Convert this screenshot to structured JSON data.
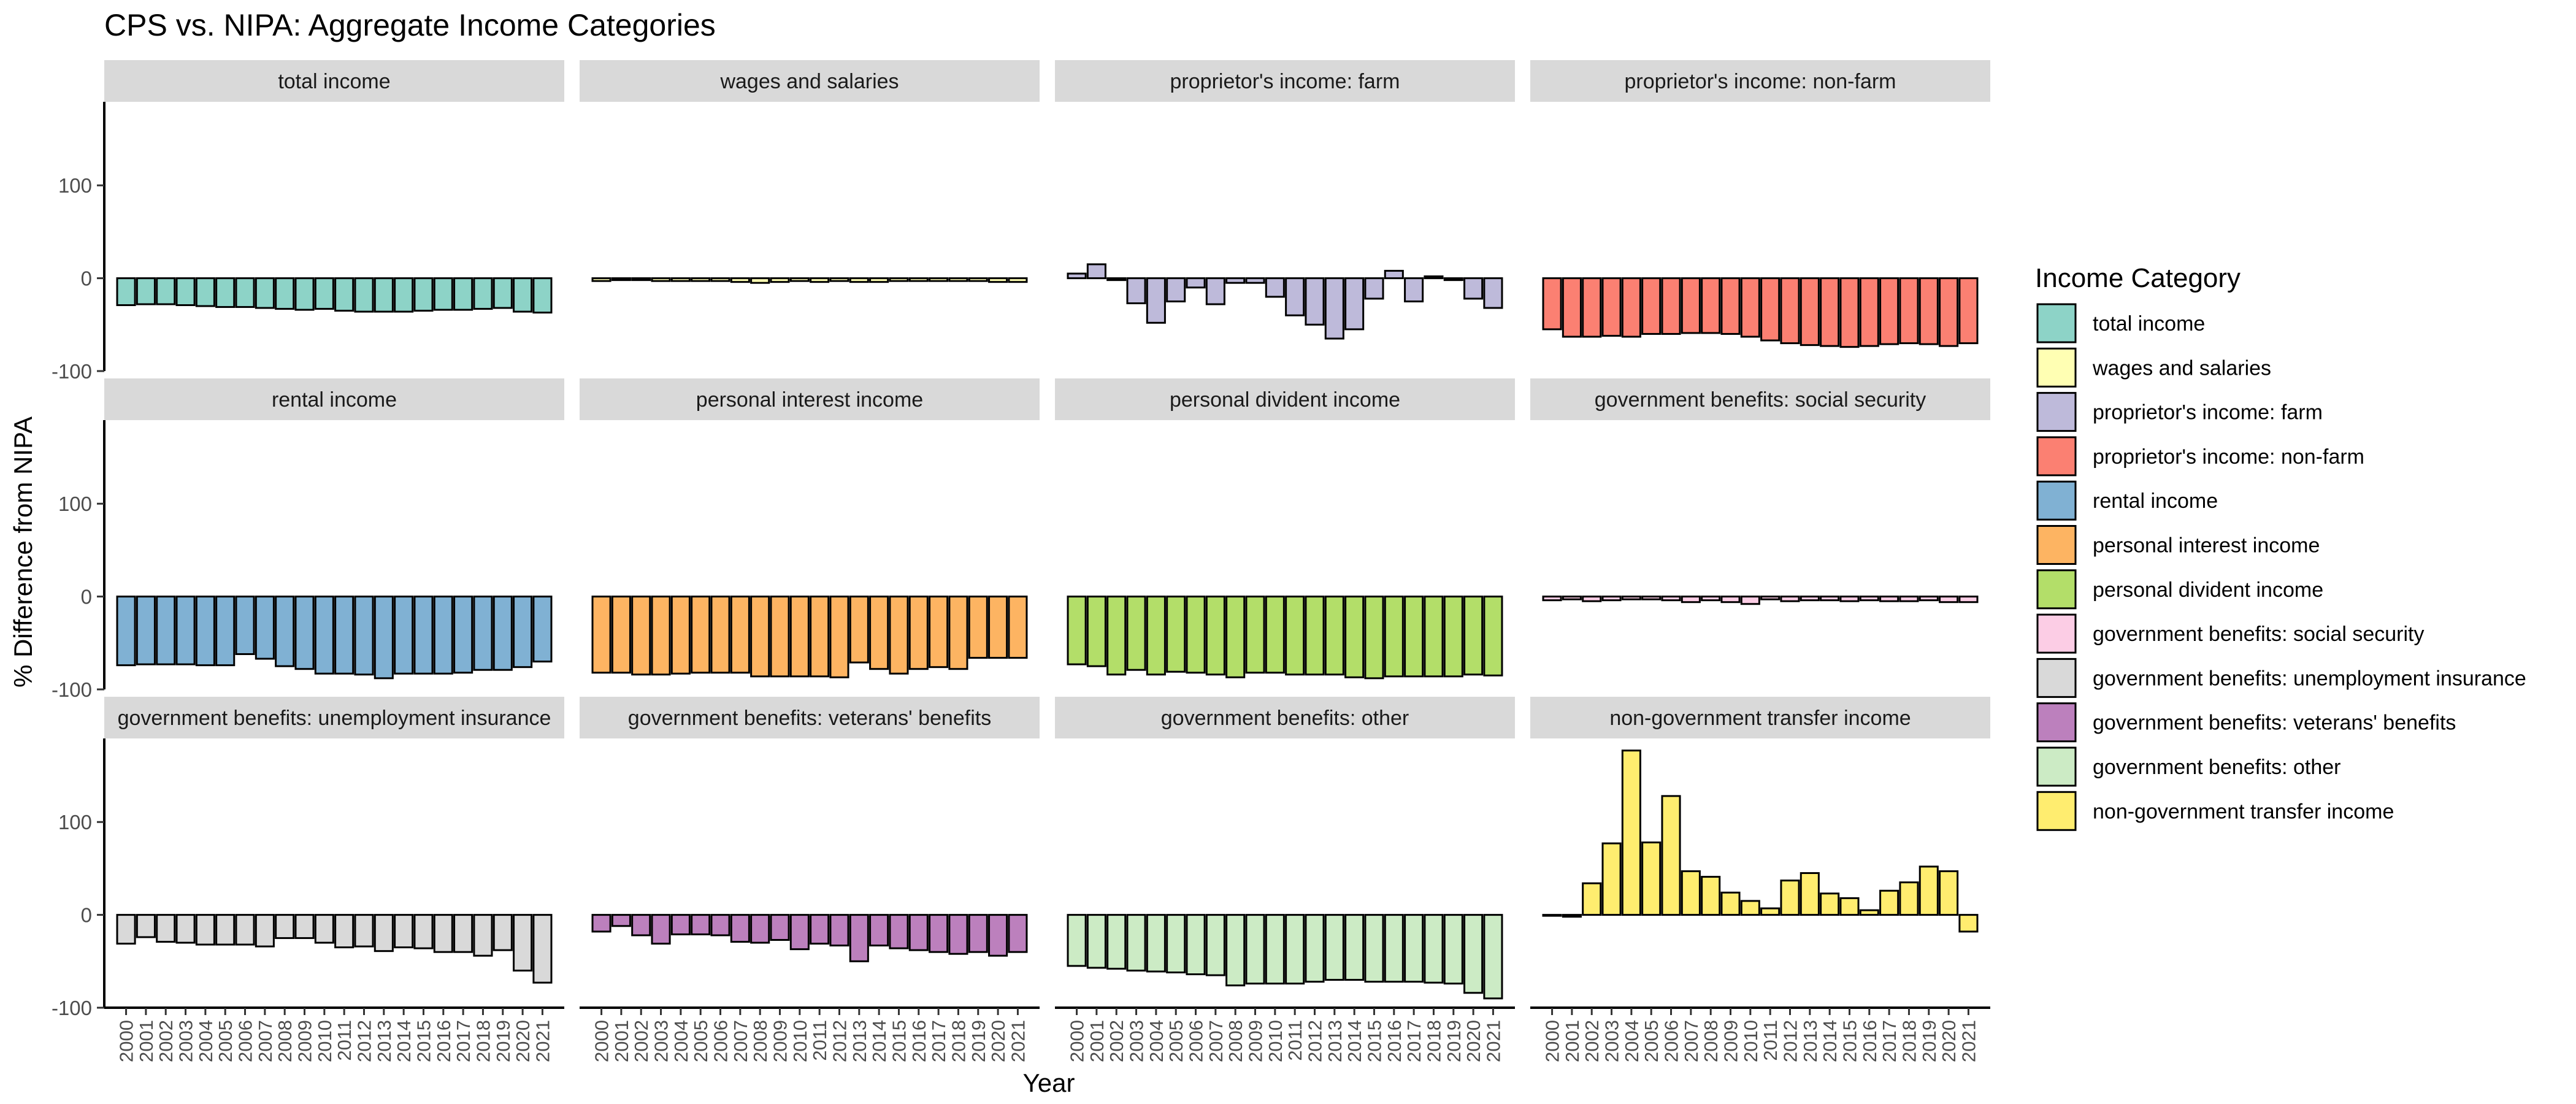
{
  "chart_data": {
    "type": "bar",
    "title": "CPS vs. NIPA: Aggregate Income Categories",
    "xlabel": "Year",
    "ylabel": "% Difference from NIPA",
    "ylim": [
      -100,
      190
    ],
    "y_ticks": [
      -100,
      0,
      100
    ],
    "grid": false,
    "legend_placement": "right",
    "legend_title": "Income Category",
    "facet_layout": "3x4",
    "categories": [
      "2000",
      "2001",
      "2002",
      "2003",
      "2004",
      "2005",
      "2006",
      "2007",
      "2008",
      "2009",
      "2010",
      "2011",
      "2012",
      "2013",
      "2014",
      "2015",
      "2016",
      "2017",
      "2018",
      "2019",
      "2020",
      "2021"
    ],
    "series": [
      {
        "name": "total income",
        "color": "#8DD3C7",
        "values": [
          -29,
          -28,
          -28,
          -29,
          -30,
          -31,
          -31,
          -32,
          -33,
          -34,
          -33,
          -35,
          -36,
          -36,
          -36,
          -35,
          -34,
          -34,
          -33,
          -32,
          -36,
          -37
        ]
      },
      {
        "name": "wages and salaries",
        "color": "#FFFFB3",
        "values": [
          -3,
          -2,
          -2,
          -3,
          -3,
          -3,
          -3,
          -4,
          -5,
          -4,
          -3,
          -4,
          -3,
          -4,
          -4,
          -3,
          -3,
          -3,
          -3,
          -3,
          -4,
          -4
        ]
      },
      {
        "name": "proprietor's income: farm",
        "color": "#BEBADA",
        "values": [
          5,
          15,
          -2,
          -27,
          -48,
          -25,
          -10,
          -28,
          -5,
          -5,
          -20,
          -40,
          -50,
          -65,
          -55,
          -22,
          8,
          -25,
          2,
          -2,
          -22,
          -32
        ]
      },
      {
        "name": "proprietor's income: non-farm",
        "color": "#FB8072",
        "values": [
          -55,
          -63,
          -63,
          -62,
          -63,
          -60,
          -60,
          -59,
          -59,
          -60,
          -63,
          -67,
          -70,
          -72,
          -73,
          -74,
          -73,
          -71,
          -70,
          -71,
          -73,
          -70
        ]
      },
      {
        "name": "rental income",
        "color": "#80B1D3",
        "values": [
          -74,
          -73,
          -73,
          -73,
          -74,
          -74,
          -62,
          -67,
          -75,
          -78,
          -83,
          -83,
          -84,
          -88,
          -83,
          -83,
          -83,
          -82,
          -79,
          -79,
          -76,
          -70
        ]
      },
      {
        "name": "personal interest income",
        "color": "#FDB462",
        "values": [
          -82,
          -82,
          -84,
          -84,
          -83,
          -82,
          -82,
          -82,
          -86,
          -86,
          -86,
          -86,
          -87,
          -71,
          -78,
          -83,
          -78,
          -76,
          -78,
          -66,
          -66,
          -66
        ]
      },
      {
        "name": "personal divident income",
        "color": "#B3DE69",
        "values": [
          -73,
          -75,
          -84,
          -79,
          -84,
          -81,
          -82,
          -84,
          -87,
          -82,
          -82,
          -84,
          -84,
          -84,
          -87,
          -88,
          -86,
          -86,
          -86,
          -86,
          -84,
          -85
        ]
      },
      {
        "name": "government benefits: social security",
        "color": "#FCCDE5",
        "values": [
          -4,
          -3,
          -5,
          -4,
          -3,
          -3,
          -4,
          -6,
          -4,
          -6,
          -8,
          -3,
          -5,
          -4,
          -4,
          -5,
          -4,
          -5,
          -5,
          -4,
          -6,
          -6
        ]
      },
      {
        "name": "government benefits: unemployment insurance",
        "color": "#D9D9D9",
        "values": [
          -31,
          -24,
          -29,
          -30,
          -32,
          -32,
          -32,
          -34,
          -25,
          -25,
          -30,
          -35,
          -34,
          -39,
          -35,
          -36,
          -40,
          -40,
          -44,
          -38,
          -60,
          -73
        ]
      },
      {
        "name": "government benefits: veterans' benefits",
        "color": "#BC80BD",
        "values": [
          -18,
          -12,
          -22,
          -31,
          -21,
          -21,
          -22,
          -29,
          -30,
          -27,
          -37,
          -31,
          -33,
          -50,
          -33,
          -36,
          -38,
          -40,
          -42,
          -40,
          -44,
          -40
        ]
      },
      {
        "name": "government benefits: other",
        "color": "#CCEBC5",
        "values": [
          -55,
          -57,
          -58,
          -60,
          -61,
          -62,
          -64,
          -65,
          -76,
          -74,
          -74,
          -74,
          -72,
          -70,
          -70,
          -72,
          -72,
          -72,
          -73,
          -74,
          -84,
          -90
        ]
      },
      {
        "name": "non-government transfer income",
        "color": "#FFED6F",
        "values": [
          -1,
          -2,
          34,
          77,
          177,
          78,
          128,
          47,
          41,
          24,
          15,
          7,
          37,
          45,
          23,
          18,
          5,
          26,
          35,
          52,
          47,
          -18
        ]
      }
    ]
  }
}
